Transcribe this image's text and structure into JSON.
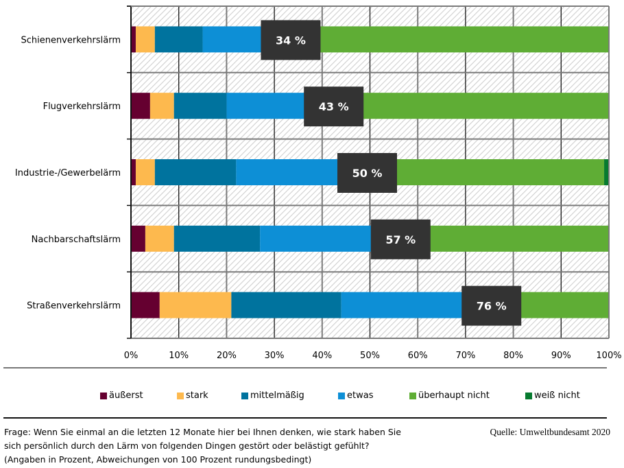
{
  "chart_data": {
    "type": "bar",
    "orientation": "horizontal",
    "stacked": true,
    "percent_scale": true,
    "title": "",
    "xlabel": "",
    "ylabel": "",
    "xlim": [
      0,
      100
    ],
    "grid": true,
    "legend_position": "bottom",
    "categories": [
      "Schienenverkehrslärm",
      "Flugverkehrslärm",
      "Industrie-/Gewerbelärm",
      "Nachbarschaftslärm",
      "Straßenverkehrslärm"
    ],
    "x_ticks": [
      "0%",
      "10%",
      "20%",
      "30%",
      "40%",
      "50%",
      "60%",
      "70%",
      "80%",
      "90%",
      "100%"
    ],
    "series": [
      {
        "name": "äußerst",
        "color": "#650030",
        "values": [
          1,
          4,
          1,
          3,
          6
        ]
      },
      {
        "name": "stark",
        "color": "#FDB94E",
        "values": [
          4,
          5,
          4,
          6,
          15
        ]
      },
      {
        "name": "mittelmäßig",
        "color": "#00739E",
        "values": [
          10,
          11,
          17,
          18,
          23
        ]
      },
      {
        "name": "etwas",
        "color": "#0D8FD6",
        "values": [
          19,
          23,
          28,
          30,
          32
        ]
      },
      {
        "name": "überhaupt nicht",
        "color": "#5FAD35",
        "values": [
          66,
          57,
          49,
          43,
          24
        ]
      },
      {
        "name": "weiß nicht",
        "color": "#067A2F",
        "values": [
          0,
          0,
          1,
          0,
          0
        ]
      }
    ],
    "annotations": [
      {
        "category": "Schienenverkehrslärm",
        "text": "34 %",
        "value": 34
      },
      {
        "category": "Flugverkehrslärm",
        "text": "43 %",
        "value": 43
      },
      {
        "category": "Industrie-/Gewerbelärm",
        "text": "50 %",
        "value": 50
      },
      {
        "category": "Nachbarschaftslärm",
        "text": "57 %",
        "value": 57
      },
      {
        "category": "Straßenverkehrslärm",
        "text": "76 %",
        "value": 76
      }
    ],
    "annotation_box_color": "#333333"
  },
  "footnote": {
    "line1": "Frage: Wenn Sie einmal an die letzten 12 Monate hier bei Ihnen denken, wie stark haben Sie",
    "line2": "sich persönlich durch den Lärm von folgenden Dingen gestört oder belästigt gefühlt?",
    "line3": "(Angaben in Prozent, Abweichungen von 100 Prozent rundungsbedingt)"
  },
  "source": "Quelle: Umweltbundesamt 2020"
}
